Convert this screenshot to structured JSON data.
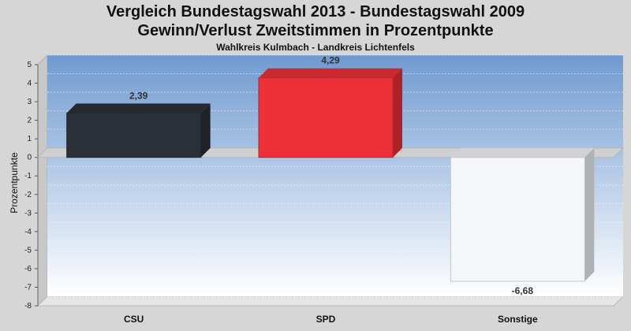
{
  "chart_data": {
    "type": "bar",
    "title": "Vergleich Bundestagswahl 2013 - Bundestagswahl 2009",
    "subtitle": "Gewinn/Verlust Zweitstimmen in Prozentpunkte",
    "caption": "Wahlkreis Kulmbach - Landkreis Lichtenfels",
    "xlabel": "",
    "ylabel": "Prozentpunkte",
    "categories": [
      "CSU",
      "SPD",
      "Sonstige"
    ],
    "values": [
      2.39,
      4.29,
      -6.68
    ],
    "value_labels": [
      "2,39",
      "4,29",
      "-6,68"
    ],
    "ylim": [
      -8,
      5
    ],
    "yticks": [
      5,
      4,
      3,
      2,
      1,
      0,
      -1,
      -2,
      -3,
      -4,
      -5,
      -6,
      -7,
      -8
    ],
    "grid": true,
    "colors": {
      "CSU": "#2b3038",
      "SPD": "#ee3039",
      "Sonstige": "#f5f6fa",
      "plot_top": "#6f9ad0",
      "plot_bottom": "#ffffff",
      "background": "#d6d6d6"
    }
  }
}
